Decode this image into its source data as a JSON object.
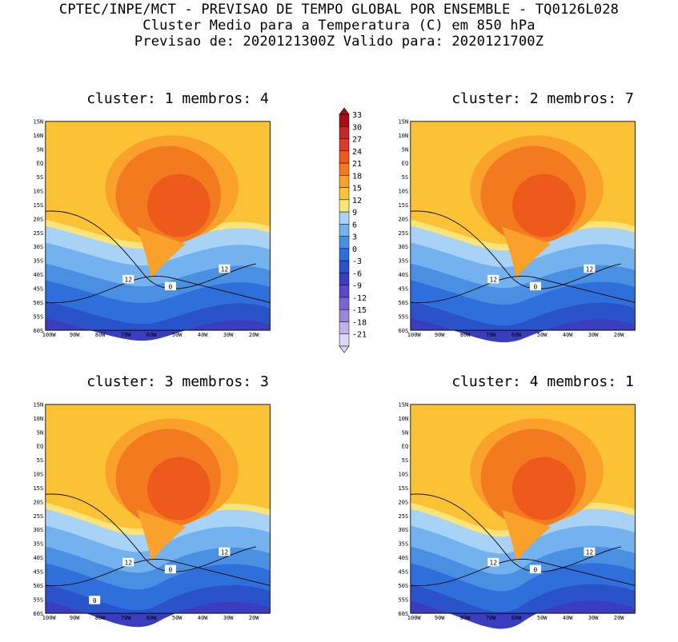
{
  "header": {
    "line1": "CPTEC/INPE/MCT - PREVISAO DE TEMPO GLOBAL POR ENSEMBLE - TQ0126L028",
    "line2": "Cluster Medio para a Temperatura (C) em 850 hPa",
    "line3": "Previsao de: 2020121300Z   Valido para: 2020121700Z"
  },
  "panels": [
    {
      "title": "cluster: 1  membros: 4"
    },
    {
      "title": "cluster: 2  membros: 7"
    },
    {
      "title": "cluster: 3  membros: 3"
    },
    {
      "title": "cluster: 4  membros: 1"
    }
  ],
  "axes": {
    "lat_labels": [
      "15N",
      "10N",
      "5N",
      "EQ",
      "5S",
      "10S",
      "15S",
      "20S",
      "25S",
      "30S",
      "35S",
      "40S",
      "45S",
      "50S",
      "55S",
      "60S"
    ],
    "lon_labels": [
      "100W",
      "90W",
      "80W",
      "70W",
      "60W",
      "50W",
      "40W",
      "30W",
      "20W"
    ]
  },
  "contour_labels": {
    "panel1": [
      "12",
      "12",
      "0"
    ],
    "panel2": [
      "12",
      "12",
      "0"
    ],
    "panel3": [
      "12",
      "12",
      "0",
      "0"
    ],
    "panel4": [
      "12",
      "12",
      "0"
    ]
  },
  "colorbar": {
    "levels": [
      "33",
      "30",
      "27",
      "24",
      "21",
      "18",
      "15",
      "12",
      "9",
      "6",
      "3",
      "0",
      "-3",
      "-6",
      "-9",
      "-12",
      "-15",
      "-18",
      "-21"
    ],
    "colors": [
      "#a50f15",
      "#c3282d",
      "#dc3b2a",
      "#ee5a1c",
      "#f37a1f",
      "#f9a12a",
      "#fbc236",
      "#fde47a",
      "#a8d3f7",
      "#73b2ee",
      "#4a90e2",
      "#2f6fdb",
      "#2a52c9",
      "#3b3dbf",
      "#5a49c9",
      "#7a66d2",
      "#9a87dc",
      "#c0b3e8",
      "#ddd6f2"
    ]
  },
  "colors": {
    "land_border": "#aaaaaa",
    "contour": "#000000"
  }
}
